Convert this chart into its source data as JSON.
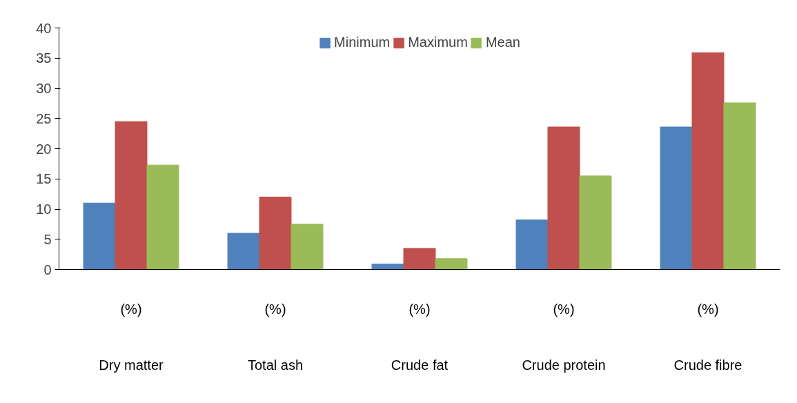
{
  "chart_data": {
    "type": "bar",
    "categories": [
      "(%)\nDry matter",
      "(%)\nTotal ash",
      "(%)\nCrude fat",
      "(%)\nCrude protein",
      "(%)\nCrude fibre"
    ],
    "series": [
      {
        "name": "Minimum",
        "color": "#4f81bd",
        "values": [
          11,
          6,
          0.9,
          8.2,
          23.6
        ]
      },
      {
        "name": "Maximum",
        "color": "#c0504d",
        "values": [
          24.5,
          12,
          3.5,
          23.6,
          35.9
        ]
      },
      {
        "name": "Mean",
        "color": "#9bbb59",
        "values": [
          17.3,
          7.5,
          1.8,
          15.5,
          27.6
        ]
      }
    ],
    "ylim": [
      0,
      40
    ],
    "yticks": [
      0,
      5,
      10,
      15,
      20,
      25,
      30,
      35,
      40
    ],
    "grid": false,
    "legend": "top"
  }
}
